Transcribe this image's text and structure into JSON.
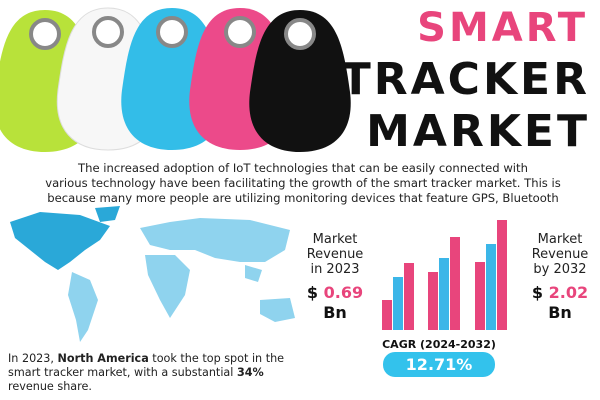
{
  "header": {
    "title_lines": [
      "SMART",
      "TRACKER",
      "MARKET"
    ]
  },
  "description_lines": [
    "The increased adoption of IoT technologies that can be easily connected with",
    "various technology have been facilitating the growth of the smart tracker market. This is",
    "because many more people are utilizing monitoring devices that feature GPS, Bluetooth"
  ],
  "revenue_2023": {
    "label_lines": [
      "Market",
      "Revenue",
      "in 2023"
    ],
    "currency": "$",
    "value": 0.69,
    "unit": "Bn"
  },
  "revenue_2032": {
    "label_lines": [
      "Market",
      "Revenue",
      "by 2032"
    ],
    "currency": "$",
    "value": 2.02,
    "unit": "Bn"
  },
  "cagr": {
    "label": "CAGR (2024-2032)",
    "value": "12.71%"
  },
  "summary": {
    "parts": [
      "In 2023, ",
      "North America",
      " took the top spot in the smart tracker market, with a substantial ",
      "34%",
      " revenue share."
    ]
  }
}
